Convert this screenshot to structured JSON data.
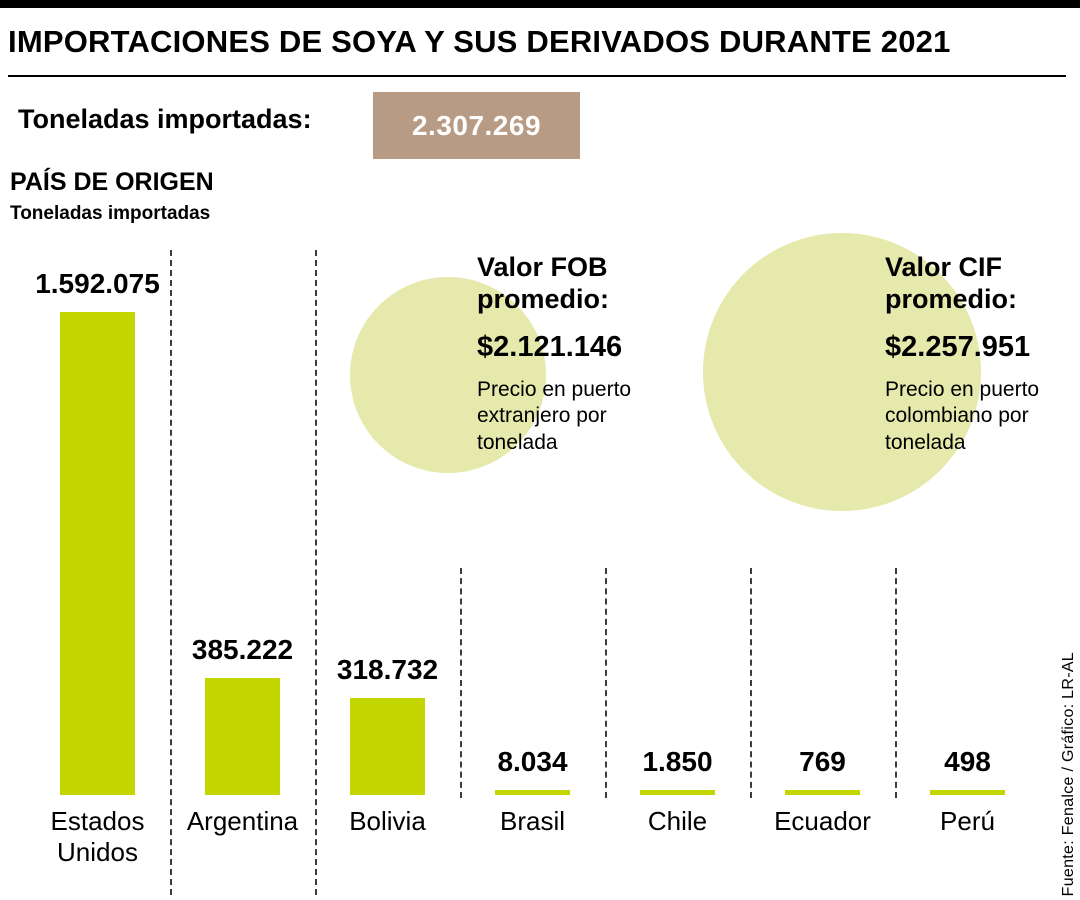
{
  "header": {
    "title": "IMPORTACIONES DE SOYA Y SUS DERIVADOS DURANTE 2021"
  },
  "total": {
    "label": "Toneladas importadas:",
    "value": "2.307.269"
  },
  "chart_header": {
    "title": "PAÍS DE ORIGEN",
    "subtitle": "Toneladas importadas"
  },
  "chart_data": {
    "type": "bar",
    "title": "PAÍS DE ORIGEN",
    "subtitle": "Toneladas importadas",
    "categories": [
      "Estados Unidos",
      "Argentina",
      "Bolivia",
      "Brasil",
      "Chile",
      "Ecuador",
      "Perú"
    ],
    "values": [
      1592075,
      385222,
      318732,
      8034,
      1850,
      769,
      498
    ],
    "value_labels": [
      "1.592.075",
      "385.222",
      "318.732",
      "8.034",
      "1.850",
      "769",
      "498"
    ],
    "ylim": [
      0,
      1592075
    ],
    "bar_color": "#c4d600",
    "grid": "dashed-vertical-separators",
    "legend_position": "none"
  },
  "fob": {
    "title": "Valor FOB promedio:",
    "value": "$2.121.146",
    "note": "Precio en puerto extranjero por tonelada"
  },
  "cif": {
    "title": "Valor CIF promedio:",
    "value": "$2.257.951",
    "note": "Precio en puerto colombiano por tonelada"
  },
  "source": "Fuente: Fenalce / Gráfico: LR-AL",
  "colors": {
    "bar": "#c4d600",
    "circle": "#e5e9ab",
    "total_box": "#b79b85",
    "rule": "#000000",
    "text": "#000000"
  }
}
